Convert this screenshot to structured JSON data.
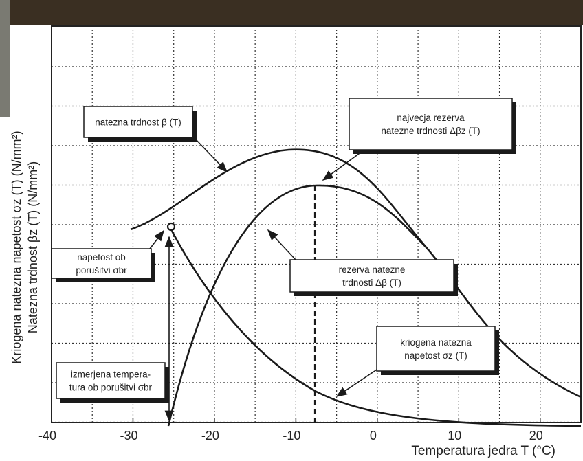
{
  "chart_data": {
    "type": "line",
    "x_label": "Temperatura jedra T (°C)",
    "y_label": [
      "Kriogena natezna napetost σz (T) (N/mm²)",
      "Natezna trdnost βz (T) (N/mm²)"
    ],
    "xlim": [
      -40,
      25
    ],
    "xticks": [
      -40,
      -30,
      -20,
      -10,
      0,
      10,
      20
    ],
    "annotations": [
      [
        "natezna trdnost β (T)"
      ],
      [
        "najvecja rezerva",
        "natezne trdnosti Δβz (T)"
      ],
      [
        "napetost ob",
        "porušitvi σbr"
      ],
      [
        "rezerva natezne",
        "trdnosti Δβ (T)"
      ],
      [
        "kriogena natezna",
        "napetost σz (T)"
      ],
      [
        "izmerjena tempera-",
        "tura ob porušitvi σbr"
      ]
    ]
  }
}
